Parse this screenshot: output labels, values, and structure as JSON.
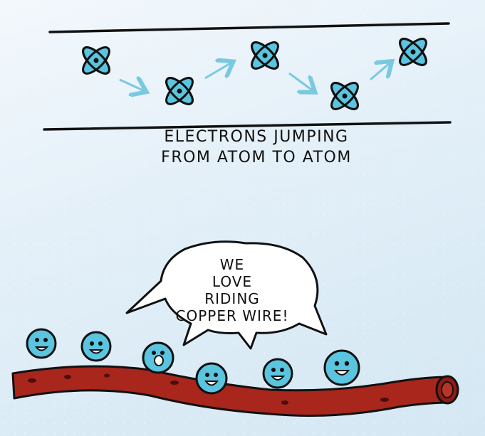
{
  "diagram": {
    "caption_lines": [
      "ELECTRONS JUMPING",
      "FROM ATOM TO ATOM"
    ],
    "speech_bubble_lines": [
      "WE",
      "LOVE",
      "RIDING",
      "COPPER WIRE!"
    ],
    "colors": {
      "atom_fill": "#5bc4de",
      "wire": "#a8261c",
      "arrow": "#79c9e0",
      "ink": "#111111"
    }
  }
}
